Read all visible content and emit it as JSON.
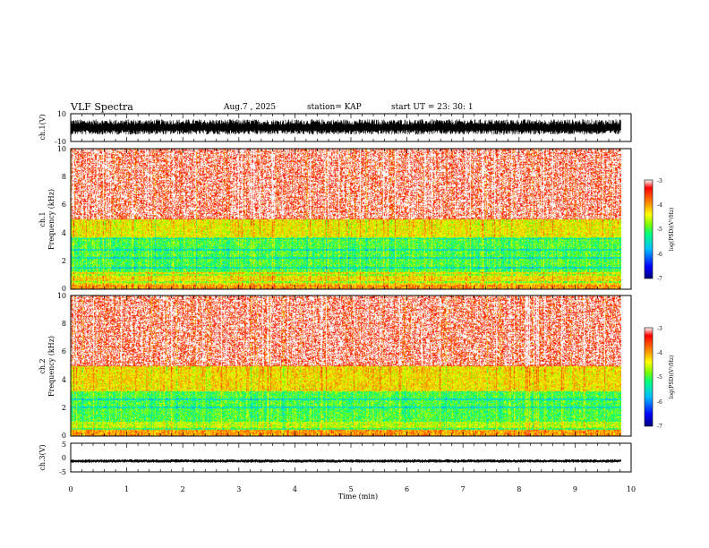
{
  "header": {
    "title": "VLF Spectra",
    "date": "Aug.7 , 2025",
    "station": "station= KAP",
    "start_ut": "start UT = 23: 30: 1"
  },
  "chart_data": [
    {
      "type": "line",
      "name": "ch1-waveform",
      "ylabel": "ch.1(V)",
      "ylim": [
        -10,
        10
      ],
      "yticks": [
        "10",
        "-10"
      ],
      "xlim": [
        0,
        10
      ],
      "data_extent_min": 9.82,
      "description_values": {
        "center": 0,
        "amplitude": 6
      }
    },
    {
      "type": "heatmap",
      "name": "ch1-spectrogram",
      "ylabel": "ch.1\nFrequency (kHz)",
      "ylabel_lines": [
        "ch.1",
        "Frequency (kHz)"
      ],
      "ylim": [
        0,
        10
      ],
      "yticks": [
        "0",
        "2",
        "4",
        "6",
        "8",
        "10"
      ],
      "xlim": [
        0,
        10
      ],
      "data_extent_min": 9.82,
      "colorbar": {
        "label": "log(PSD)(V²/Hz)",
        "range": [
          -7,
          -3
        ],
        "ticks": [
          "-3",
          "-4",
          "-5",
          "-6",
          "-7"
        ]
      },
      "bands": [
        {
          "from_khz": 0.0,
          "to_khz": 0.3,
          "level": -4.0
        },
        {
          "from_khz": 0.3,
          "to_khz": 1.2,
          "level": -4.3
        },
        {
          "from_khz": 1.2,
          "to_khz": 3.6,
          "level": -5.0
        },
        {
          "from_khz": 3.6,
          "to_khz": 5.0,
          "level": -4.4
        },
        {
          "from_khz": 5.0,
          "to_khz": 10.0,
          "level": -3.4
        }
      ],
      "tone_lines_khz": [
        0.5,
        1.0,
        1.5,
        2.2,
        2.8,
        3.6
      ]
    },
    {
      "type": "heatmap",
      "name": "ch2-spectrogram",
      "ylabel": "ch.2\nFrequency (kHz)",
      "ylabel_lines": [
        "ch.2",
        "Frequency (kHz)"
      ],
      "ylim": [
        0,
        10
      ],
      "yticks": [
        "0",
        "2",
        "4",
        "6",
        "8",
        "10"
      ],
      "xlim": [
        0,
        10
      ],
      "data_extent_min": 9.82,
      "colorbar": {
        "label": "log(PSD)(V²/Hz)",
        "range": [
          -7,
          -3
        ],
        "ticks": [
          "-3",
          "-4",
          "-5",
          "-6",
          "-7"
        ]
      },
      "bands": [
        {
          "from_khz": 0.0,
          "to_khz": 0.4,
          "level": -4.0
        },
        {
          "from_khz": 0.4,
          "to_khz": 1.0,
          "level": -4.6
        },
        {
          "from_khz": 1.0,
          "to_khz": 3.2,
          "level": -5.0
        },
        {
          "from_khz": 3.2,
          "to_khz": 5.0,
          "level": -4.3
        },
        {
          "from_khz": 5.0,
          "to_khz": 10.0,
          "level": -3.4
        }
      ],
      "tone_lines_khz": [
        0.5,
        2.0,
        2.6
      ]
    },
    {
      "type": "line",
      "name": "ch3-waveform",
      "ylabel": "ch.3(V)",
      "ylim": [
        -5,
        5
      ],
      "yticks": [
        "5",
        "0",
        "-5"
      ],
      "xlim": [
        0,
        10
      ],
      "data_extent_min": 9.82,
      "description_values": {
        "center": -1.2,
        "amplitude": 0.6
      }
    }
  ],
  "xaxis": {
    "label": "Time (min)",
    "range": [
      0,
      10
    ],
    "ticks": [
      "0",
      "1",
      "2",
      "3",
      "4",
      "5",
      "6",
      "7",
      "8",
      "9",
      "10"
    ]
  },
  "colors": {
    "frame": "#000000",
    "scale": [
      "#00007f",
      "#0000ff",
      "#00c0ff",
      "#00ff80",
      "#80ff00",
      "#ffff00",
      "#ff8000",
      "#ff0000",
      "#ffffff"
    ]
  }
}
